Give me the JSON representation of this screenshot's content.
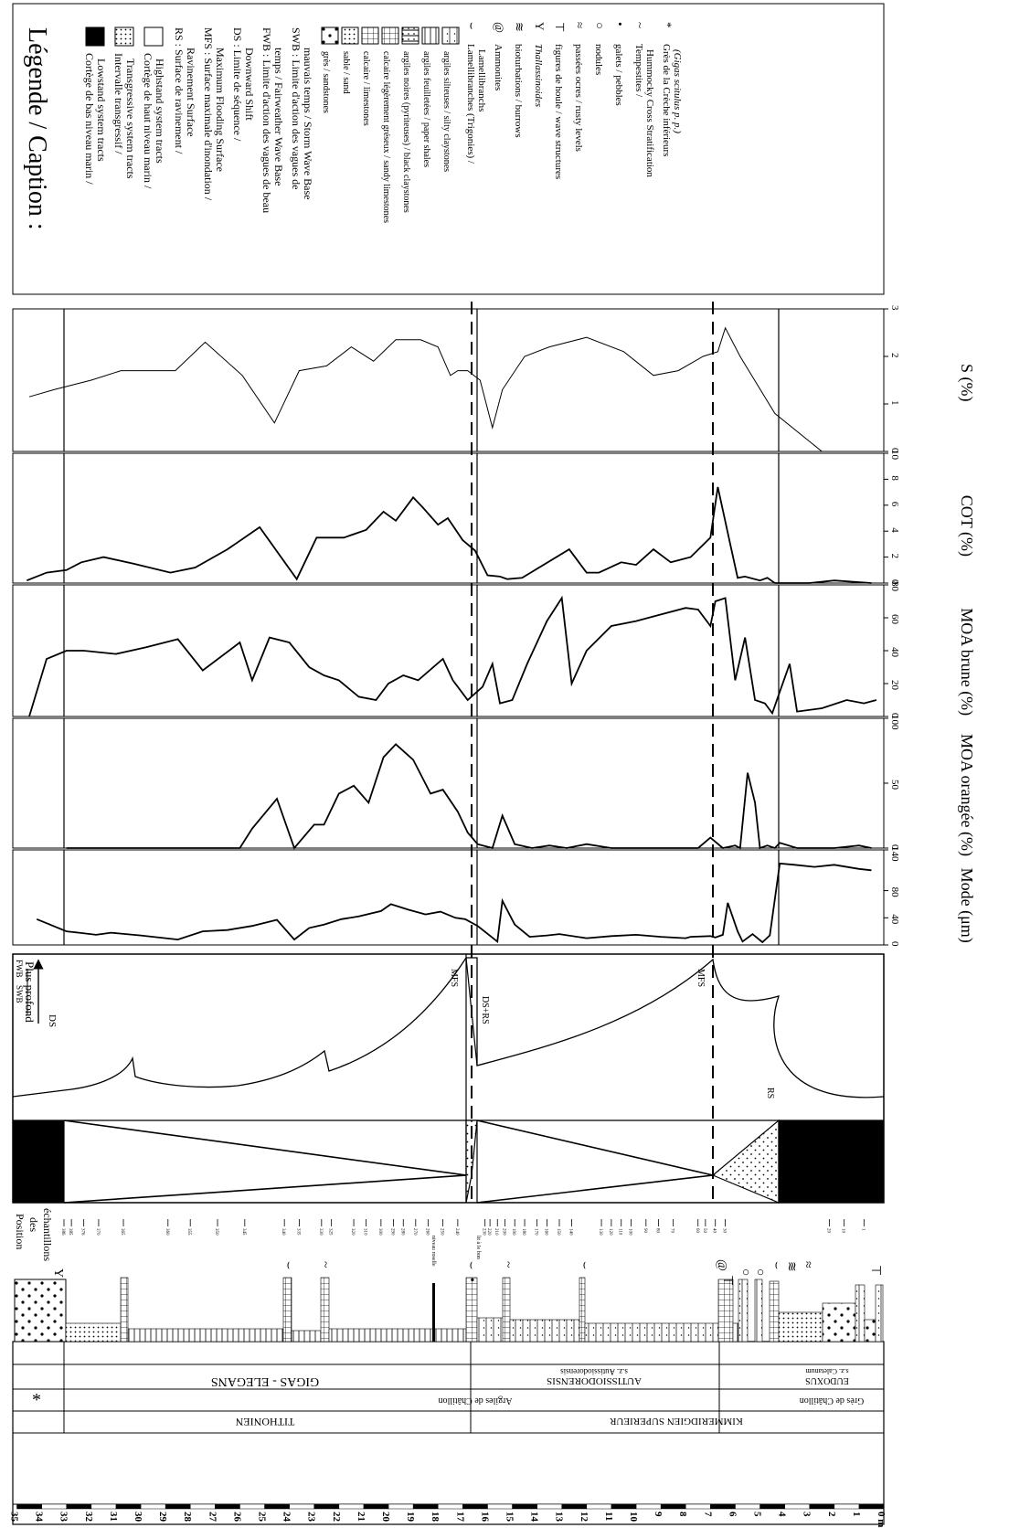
{
  "legend": {
    "title": "Légende / Caption :",
    "tracts": [
      {
        "fill": "black",
        "label": "Cortège de bas niveau marin /",
        "label2": "Lowstand system tracts"
      },
      {
        "fill": "dots",
        "label": "Intervalle transgressif /",
        "label2": "Transgressive system tracts"
      },
      {
        "fill": "white",
        "label": "Cortège de haut niveau marin /",
        "label2": "Highstand system tracts"
      }
    ],
    "surfaces": [
      {
        "label": "RS : Surface de ravinement /",
        "label2": "Ravinement Surface"
      },
      {
        "label": "MFS : Surface maximale d'inondation /",
        "label2": "Maximum Flooding Surface"
      },
      {
        "label": "DS : Limite de séquence /",
        "label2": "Downward Shift"
      },
      {
        "label": "FWB : Limite d'action des vagues de beau",
        "label2": "temps / Fairweather Wave Base"
      },
      {
        "label": "SWB : Limite d'action des vagues de",
        "label2": "mauvais temps / Storm Wave Base"
      }
    ],
    "lithologies": [
      {
        "pattern": "dot",
        "label": "grès / sandstones"
      },
      {
        "pattern": "dense",
        "label": "sable / sand"
      },
      {
        "pattern": "grid",
        "label": "calcaire / limestones"
      },
      {
        "pattern": "gridg",
        "label": "calcaire légèrement gréseux / sandy limestones"
      },
      {
        "pattern": "dash",
        "label": "argiles noires (pyriteuses) / black claystones"
      },
      {
        "pattern": "lines",
        "label": "argiles feuilletées / paper shales"
      },
      {
        "pattern": "silt",
        "label": "argiles silteuses / silty claystones"
      }
    ],
    "fossils": [
      {
        "icon": "bivalve-icon",
        "symbol": "⌣",
        "label": "Lamellibranches (Trigonies) /",
        "label2": "Lamellibranchs"
      },
      {
        "icon": "ammonite-icon",
        "symbol": "@",
        "label": "Ammonites",
        "label2": ""
      },
      {
        "icon": "burrow-icon",
        "symbol": "≋",
        "label": "bioturbations / burrows",
        "label2": ""
      },
      {
        "icon": "thalassinoides-icon",
        "symbol": "Y",
        "label": "Thallassinoides",
        "label2": ""
      },
      {
        "icon": "wave-icon",
        "symbol": "⊤",
        "label": "figures de houle / wave structures",
        "label2": ""
      },
      {
        "icon": "rusty-icon",
        "symbol": "≈",
        "label": "passées ocres / rusty levels",
        "label2": ""
      },
      {
        "icon": "nodule-icon",
        "symbol": "○",
        "label": "nodules",
        "label2": ""
      },
      {
        "icon": "pebble-icon",
        "symbol": "•",
        "label": "galets / pebbles",
        "label2": ""
      },
      {
        "icon": "tempestite-icon",
        "symbol": "~",
        "label": "Tempestites /",
        "label2": "Hummocky Cross Stratification"
      },
      {
        "icon": "asterisk-icon",
        "symbol": "*",
        "label": "Grès de la Crèche inférieurs",
        "label2": "(Gigas scitulus p. p.)"
      }
    ]
  },
  "column": {
    "header": "Position des échantillons",
    "stages": [
      "TITHONIEN",
      "KIMMERIDGIEN SUPERIEUR"
    ],
    "formations": [
      "Argiles de Châtillon",
      "Grès de Châtillon"
    ],
    "zones": [
      "GIGAS - ELEGANS",
      "AUTISSIODORENSIS",
      "EUDOXUS"
    ],
    "subzones": [
      "s.z. Autissiodorensis",
      "s.z. Caletanum"
    ],
    "asterisk": "*",
    "depth_labels": [
      "35",
      "34",
      "33",
      "32",
      "31",
      "30",
      "29",
      "28",
      "27",
      "26",
      "25",
      "24",
      "23",
      "22",
      "21",
      "20",
      "19",
      "18",
      "17",
      "16",
      "15",
      "14",
      "13",
      "12",
      "11",
      "10",
      "9",
      "8",
      "7",
      "6",
      "5",
      "4",
      "3",
      "2",
      "1",
      "0 m"
    ],
    "samples": [
      "386",
      "385",
      "376",
      "370",
      "365",
      "360",
      "355",
      "350",
      "345",
      "340",
      "335",
      "330",
      "325",
      "320",
      "310",
      "300",
      "290",
      "280",
      "270",
      "260",
      "250",
      "240",
      "230",
      "220",
      "210",
      "200",
      "190",
      "180",
      "170",
      "160",
      "150",
      "140",
      "130",
      "120",
      "110",
      "100",
      "90",
      "80",
      "70",
      "60",
      "50",
      "40",
      "30",
      "20",
      "10",
      "1"
    ],
    "annotations": [
      "niveau roselle",
      "lit à Ie bon"
    ]
  },
  "sequence": {
    "labels": [
      "FWB",
      "SWB",
      "Plus profond",
      "DS",
      "MFS",
      "DS+RS",
      "MFS",
      "RS"
    ]
  },
  "chart_data": [
    {
      "type": "line",
      "title": "",
      "xlabel": "Mode (μm)",
      "ylabel": "",
      "xlim": [
        0,
        140
      ],
      "xticks": [
        "0",
        "40",
        "80",
        "140"
      ],
      "ylim": [
        0,
        35
      ],
      "x": [
        38,
        20,
        18,
        15,
        18,
        14,
        8,
        20,
        22,
        28,
        37,
        8,
        25,
        30,
        38,
        42,
        50,
        60,
        52,
        45,
        49,
        40,
        38,
        28,
        5,
        65,
        30,
        12,
        14,
        16,
        10,
        13,
        15,
        12,
        10,
        12,
        13,
        11,
        15,
        62,
        20,
        5,
        16,
        4,
        14,
        120,
        118,
        115,
        118,
        112,
        110
      ],
      "y": [
        34.2,
        33,
        32.5,
        31.8,
        31.2,
        30,
        28.5,
        27.5,
        26.5,
        25.5,
        24.5,
        23.8,
        23.2,
        22.6,
        21.9,
        21.2,
        20.3,
        19.9,
        19.2,
        18.5,
        17.9,
        17.3,
        16.9,
        16.4,
        15.6,
        15.4,
        14.9,
        14.3,
        13.6,
        13.1,
        12,
        11,
        10,
        9,
        8,
        7.8,
        7,
        6.8,
        6.5,
        6.3,
        5.9,
        5.7,
        5.3,
        4.9,
        4.6,
        4.2,
        3.6,
        2.8,
        2,
        1,
        0.5
      ]
    },
    {
      "type": "line",
      "title": "",
      "xlabel": "MOA orangée (%)",
      "ylabel": "",
      "xlim": [
        0,
        100
      ],
      "xticks": [
        "0",
        "50",
        "100"
      ],
      "ylim": [
        0,
        35
      ],
      "x": [
        0,
        0,
        0,
        0,
        0,
        0,
        0,
        0,
        0,
        15,
        38,
        0,
        18,
        18,
        42,
        48,
        35,
        70,
        80,
        68,
        42,
        45,
        28,
        12,
        3,
        0,
        25,
        3,
        0,
        2,
        0,
        3,
        0,
        0,
        0,
        0,
        0,
        8,
        0,
        2,
        0,
        58,
        35,
        0,
        2,
        0,
        4,
        0,
        0,
        0,
        2,
        0
      ],
      "y": [
        33,
        32,
        31,
        30,
        29,
        28,
        27.5,
        27,
        26,
        25.5,
        24.5,
        23.8,
        23,
        22.6,
        22,
        21.4,
        20.8,
        20.2,
        19.7,
        19,
        18.3,
        17.8,
        17.2,
        16.8,
        16.4,
        15.8,
        15.4,
        14.9,
        14.2,
        13.5,
        12.8,
        12,
        11,
        10,
        9,
        8,
        7.5,
        7,
        6.5,
        6,
        5.8,
        5.5,
        5.2,
        5,
        4.7,
        4.4,
        4.2,
        3.5,
        3,
        2,
        1,
        0.5
      ]
    },
    {
      "type": "line",
      "title": "",
      "xlabel": "MOA brune (%)",
      "ylabel": "",
      "xlim": [
        0,
        80
      ],
      "xticks": [
        "0",
        "20",
        "40",
        "60",
        "80"
      ],
      "ylim": [
        0,
        35
      ],
      "x": [
        0,
        35,
        40,
        40,
        38,
        42,
        47,
        28,
        45,
        22,
        48,
        45,
        30,
        25,
        22,
        12,
        10,
        20,
        25,
        22,
        35,
        22,
        10,
        18,
        32,
        8,
        10,
        32,
        58,
        72,
        20,
        40,
        55,
        58,
        62,
        66,
        65,
        55,
        70,
        72,
        22,
        48,
        10,
        8,
        2,
        15,
        32,
        3,
        5,
        10,
        8,
        10
      ],
      "y": [
        34.5,
        33.8,
        33,
        32.3,
        31,
        29.8,
        28.5,
        27.5,
        26,
        25.5,
        24.8,
        24,
        23.2,
        22.6,
        22,
        21.2,
        20.5,
        20,
        19.4,
        18.8,
        17.8,
        17.4,
        16.8,
        16.2,
        15.8,
        15.5,
        15,
        14.4,
        13.6,
        13,
        12.6,
        12,
        11,
        10,
        9,
        8,
        7.5,
        7,
        6.8,
        6.4,
        6,
        5.6,
        5.2,
        4.8,
        4.5,
        4.2,
        3.8,
        3.5,
        2.5,
        1.5,
        0.8,
        0.3
      ]
    },
    {
      "type": "line",
      "title": "",
      "xlabel": "COT (%)",
      "ylabel": "",
      "xlim": [
        0,
        10
      ],
      "xticks": [
        "0",
        "2",
        "4",
        "6",
        "8",
        "10"
      ],
      "ylim": [
        0,
        35
      ],
      "x": [
        0.2,
        0.8,
        1,
        1.6,
        2,
        1.5,
        0.8,
        1.2,
        2.6,
        4.3,
        0.3,
        3.5,
        3.5,
        4.1,
        5.5,
        4.8,
        6.6,
        5.8,
        4.5,
        5,
        3.3,
        2.5,
        0.6,
        0.5,
        0.3,
        0.4,
        2.6,
        0.8,
        0.8,
        1.6,
        1.4,
        2.6,
        1.6,
        2,
        3.5,
        7.4,
        3,
        0.4,
        0.5,
        0.2,
        0.4,
        0,
        0,
        0,
        0.2,
        0
      ],
      "y": [
        34.6,
        33.8,
        33,
        32.4,
        31.5,
        30.3,
        28.8,
        27.8,
        26.5,
        25.2,
        23.7,
        22.9,
        21.8,
        20.9,
        20.2,
        19.7,
        19,
        18.6,
        18,
        17.6,
        17,
        16.5,
        16,
        15.5,
        15.2,
        14.6,
        12.7,
        12,
        11.5,
        10.6,
        10,
        9.3,
        8.6,
        7.8,
        7,
        6.7,
        6.2,
        5.9,
        5.6,
        5,
        4.7,
        4.4,
        4,
        3,
        2,
        0.5
      ]
    },
    {
      "type": "line",
      "title": "",
      "xlabel": "S (%)",
      "ylabel": "",
      "xlim": [
        0,
        3
      ],
      "xticks": [
        "0",
        "1",
        "2",
        "3"
      ],
      "ylim": [
        0,
        35
      ],
      "x": [
        1.15,
        1.3,
        1.5,
        1.7,
        1.7,
        1.7,
        2.3,
        1.6,
        0.6,
        1.7,
        1.8,
        2.2,
        1.9,
        2.35,
        2.35,
        2.2,
        1.6,
        1.7,
        1.7,
        1.5,
        0.5,
        1.3,
        2,
        2.2,
        2.4,
        2.1,
        1.6,
        1.7,
        2,
        2.1,
        2.6,
        2,
        0.8,
        0
      ],
      "y": [
        34.5,
        33.5,
        32,
        30.8,
        29.7,
        28.6,
        27.4,
        25.9,
        24.6,
        23.6,
        22.5,
        21.5,
        20.6,
        19.7,
        18.7,
        18,
        17.5,
        17.2,
        16.8,
        16.3,
        15.8,
        15.4,
        14.5,
        13.5,
        12,
        10.5,
        9.3,
        8.3,
        7.3,
        6.7,
        6.4,
        5.8,
        4.4,
        2.5
      ]
    }
  ]
}
